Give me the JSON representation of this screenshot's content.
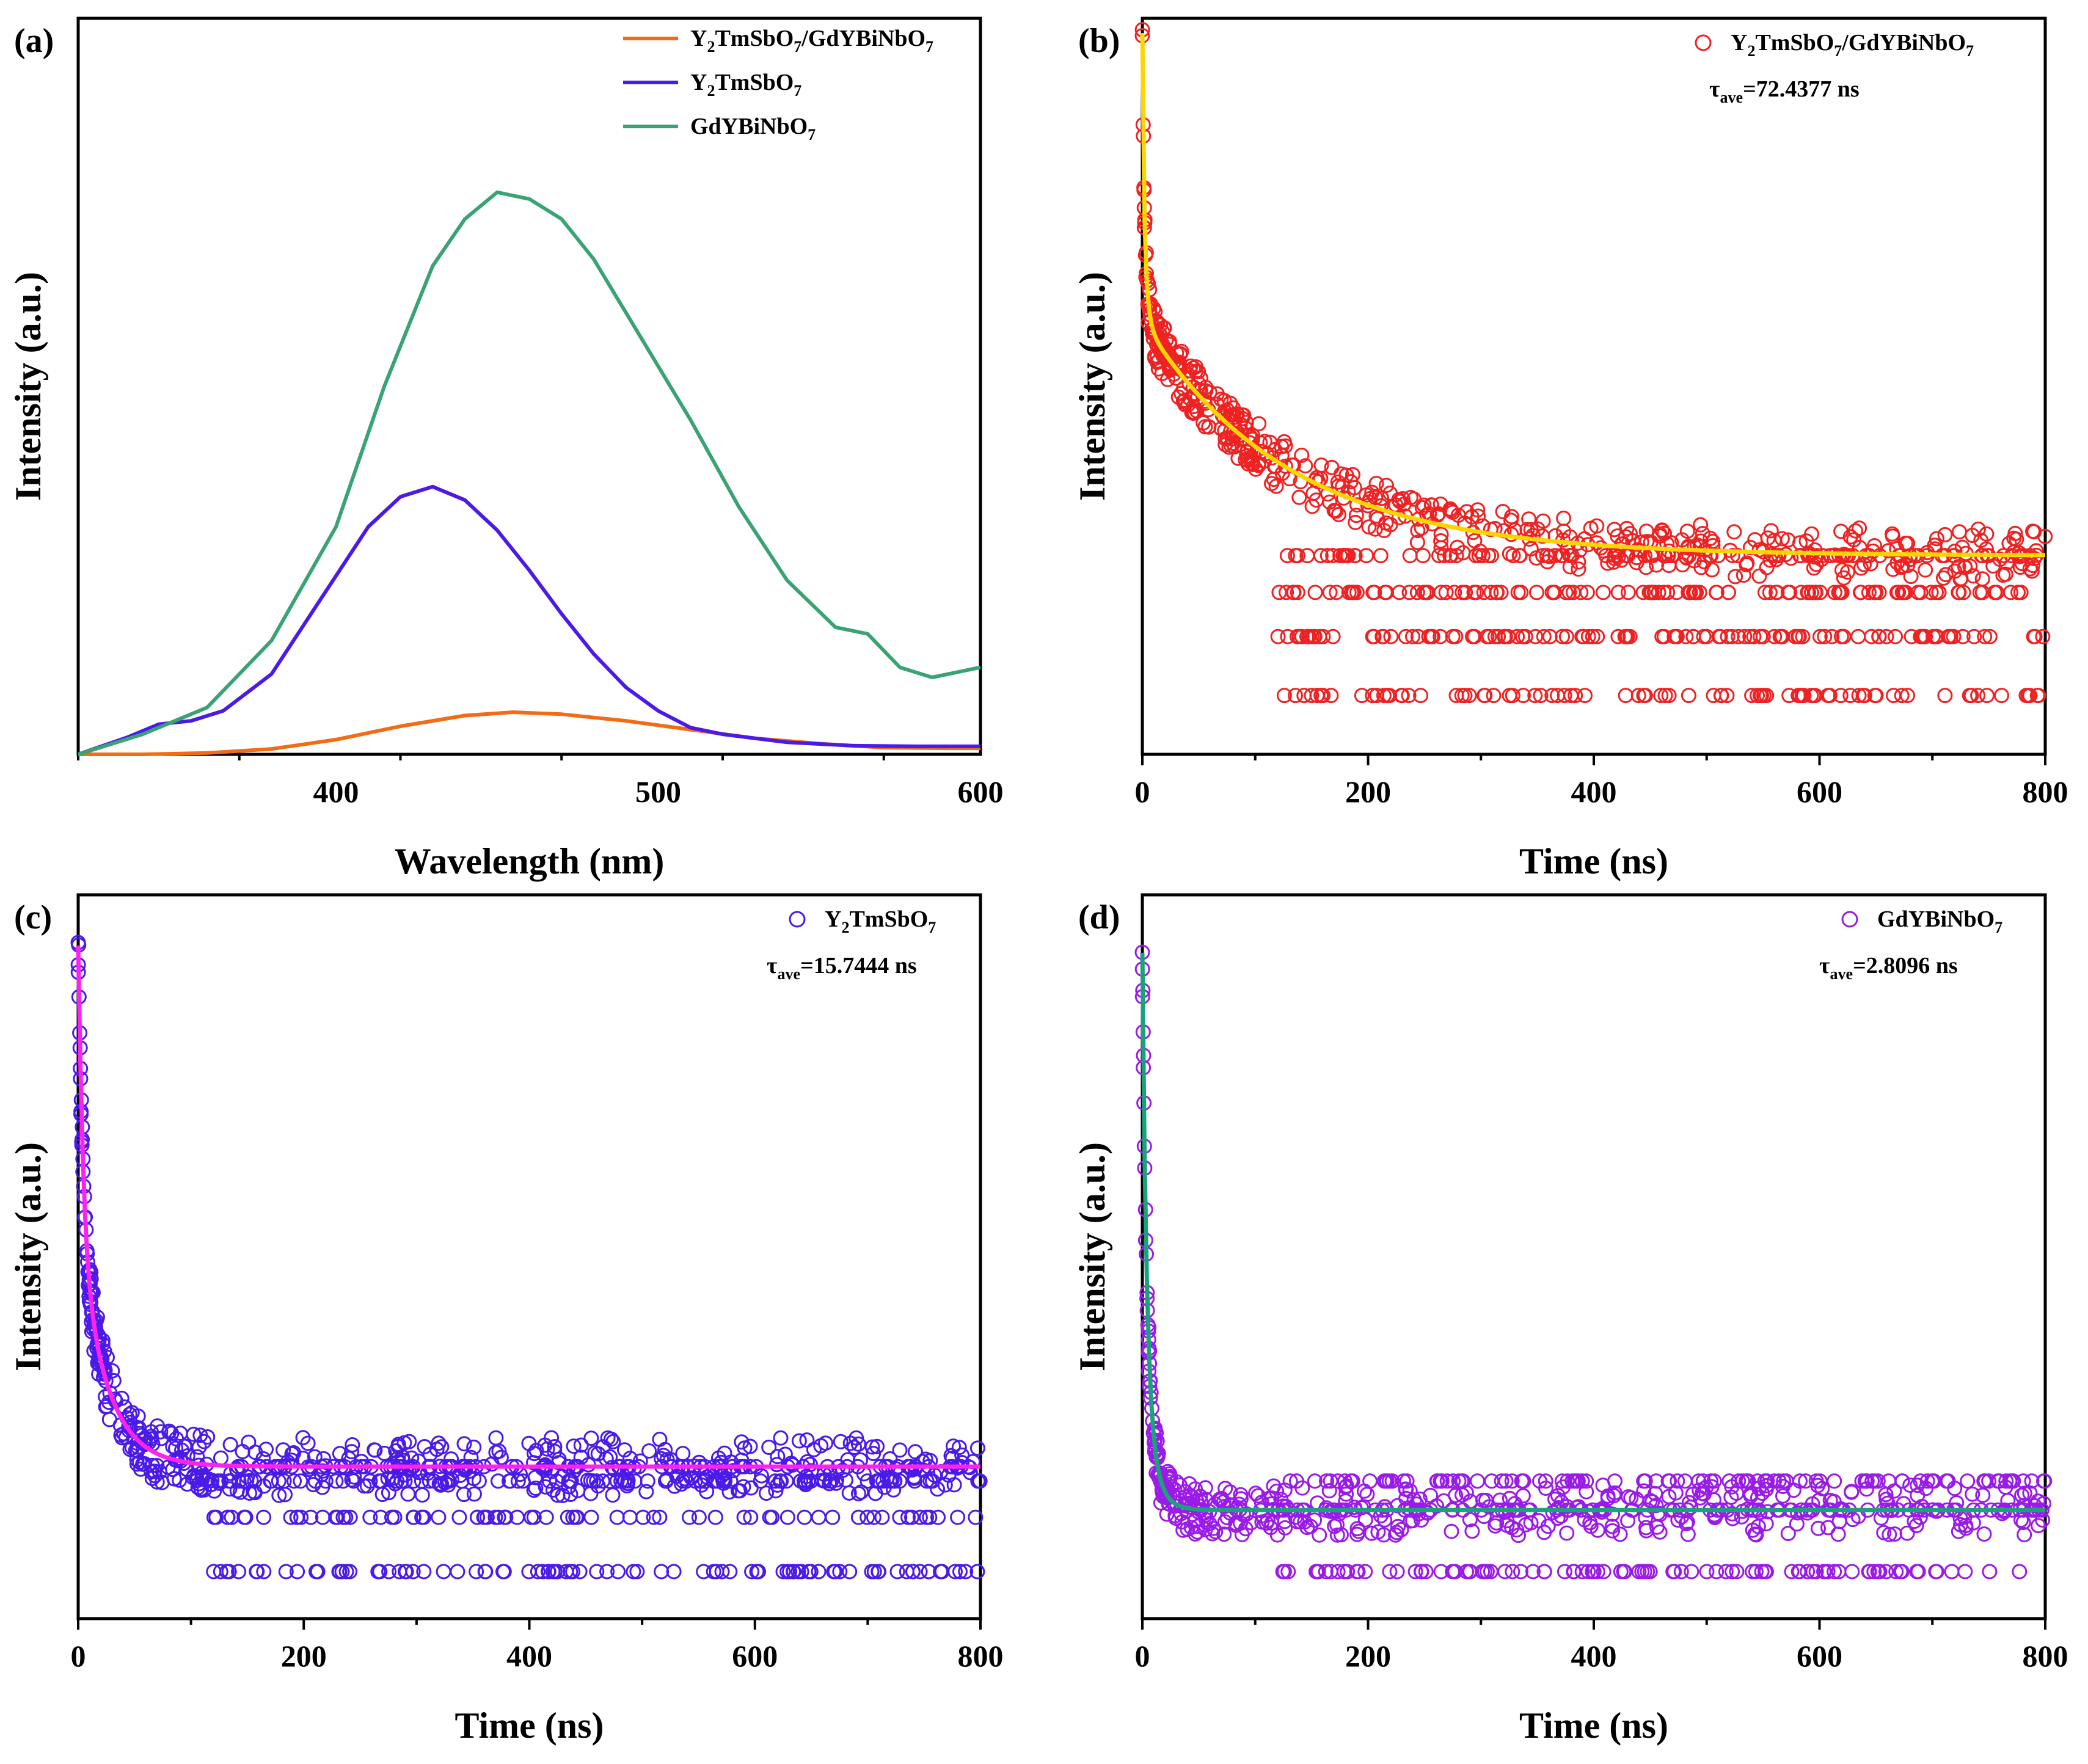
{
  "chart_data": [
    {
      "id": "a",
      "panel_label": "(a)",
      "type": "line",
      "xlabel": "Wavelength (nm)",
      "ylabel": "Intensity (a.u.)",
      "xlim": [
        320,
        600
      ],
      "ylim": [
        0,
        1.1
      ],
      "xticks": [
        400,
        500,
        600
      ],
      "legend_position": "top-right",
      "series": [
        {
          "name": "Y2TmSbO7/GdYBiNbO7",
          "legend": {
            "base": "Y",
            "s1": "2",
            "mid": "TmSbO",
            "s2": "7",
            "tail": "/GdYBiNbO",
            "s3": "7"
          },
          "color": "#f36b14",
          "x": [
            320,
            340,
            360,
            380,
            400,
            420,
            440,
            455,
            470,
            490,
            510,
            530,
            550,
            570,
            590,
            600
          ],
          "y": [
            0.0,
            0.0,
            0.002,
            0.008,
            0.022,
            0.042,
            0.058,
            0.063,
            0.06,
            0.05,
            0.037,
            0.024,
            0.016,
            0.01,
            0.009,
            0.009
          ]
        },
        {
          "name": "Y2TmSbO7",
          "legend": {
            "base": "Y",
            "s1": "2",
            "mid": "TmSbO",
            "s2": "7",
            "tail": "",
            "s3": ""
          },
          "color": "#4a1ae8",
          "x": [
            320,
            335,
            345,
            355,
            365,
            380,
            395,
            410,
            420,
            430,
            440,
            450,
            460,
            470,
            480,
            490,
            500,
            510,
            520,
            540,
            560,
            580,
            600
          ],
          "y": [
            0.0,
            0.025,
            0.045,
            0.05,
            0.065,
            0.12,
            0.23,
            0.34,
            0.385,
            0.4,
            0.38,
            0.335,
            0.275,
            0.21,
            0.15,
            0.1,
            0.065,
            0.04,
            0.03,
            0.018,
            0.013,
            0.012,
            0.012
          ]
        },
        {
          "name": "GdYBiNbO7",
          "legend": {
            "base": "GdYBiNbO",
            "s1": "7",
            "mid": "",
            "s2": "",
            "tail": "",
            "s3": ""
          },
          "color": "#3aa374",
          "x": [
            320,
            340,
            360,
            380,
            400,
            415,
            430,
            440,
            450,
            460,
            470,
            480,
            495,
            510,
            525,
            540,
            555,
            565,
            575,
            585,
            595,
            600
          ],
          "y": [
            0.0,
            0.03,
            0.07,
            0.17,
            0.34,
            0.55,
            0.73,
            0.8,
            0.84,
            0.83,
            0.8,
            0.74,
            0.62,
            0.5,
            0.37,
            0.26,
            0.19,
            0.18,
            0.13,
            0.115,
            0.125,
            0.13
          ]
        }
      ]
    },
    {
      "id": "b",
      "panel_label": "(b)",
      "type": "scatter",
      "xlabel": "Time (ns)",
      "ylabel": "Intensity (a.u.)",
      "xlim": [
        0,
        800
      ],
      "ylim": [
        0,
        1
      ],
      "xticks": [
        0,
        200,
        400,
        600,
        800
      ],
      "legend_position": "top-right",
      "marker_color": "#ee2222",
      "fit_color": "#ffd400",
      "legend": {
        "base": "Y",
        "s1": "2",
        "mid": "TmSbO",
        "s2": "7",
        "tail": "/GdYBiNbO",
        "s3": "7"
      },
      "tau_label": {
        "symbol": "τ",
        "sub": "ave",
        "value": "=72.4377 ns"
      },
      "decay": {
        "A1": 0.2,
        "t1": 3,
        "A2": 0.32,
        "t2": 130,
        "base": 0.27,
        "start": 0.98
      },
      "floor_levels": [
        0.27,
        0.22,
        0.16,
        0.08
      ],
      "scatter_n": 900,
      "noise": 0.035
    },
    {
      "id": "c",
      "panel_label": "(c)",
      "type": "scatter",
      "xlabel": "Time (ns)",
      "ylabel": "Intensity (a.u.)",
      "xlim": [
        0,
        800
      ],
      "ylim": [
        0,
        1
      ],
      "xticks": [
        0,
        200,
        400,
        600,
        800
      ],
      "legend_position": "top-right",
      "marker_color": "#4a1ae8",
      "fit_color": "#ff22ee",
      "legend": {
        "base": "Y",
        "s1": "2",
        "mid": "TmSbO",
        "s2": "7",
        "tail": "",
        "s3": ""
      },
      "tau_label": {
        "symbol": "τ",
        "sub": "ave",
        "value": "=15.7444 ns"
      },
      "decay": {
        "A1": 0.42,
        "t1": 4,
        "A2": 0.33,
        "t2": 24,
        "base": 0.21,
        "start": 0.93
      },
      "floor_levels": [
        0.21,
        0.19,
        0.14,
        0.065
      ],
      "scatter_n": 800,
      "noise": 0.04
    },
    {
      "id": "d",
      "panel_label": "(d)",
      "type": "scatter",
      "xlabel": "Time (ns)",
      "ylabel": "Intensity (a.u.)",
      "xlim": [
        0,
        800
      ],
      "ylim": [
        0,
        1
      ],
      "xticks": [
        0,
        200,
        400,
        600,
        800
      ],
      "legend_position": "top-right",
      "marker_color": "#9a1ae8",
      "fit_color": "#1aa37a",
      "legend": {
        "base": "GdYBiNbO",
        "s1": "7",
        "mid": "",
        "s2": "",
        "tail": "",
        "s3": ""
      },
      "tau_label": {
        "symbol": "τ",
        "sub": "ave",
        "value": "=2.8096 ns"
      },
      "decay": {
        "A1": 0.55,
        "t1": 3.5,
        "A2": 0.22,
        "t2": 9,
        "base": 0.15,
        "start": 0.92
      },
      "floor_levels": [
        0.19,
        0.15,
        0.065
      ],
      "scatter_n": 700,
      "noise": 0.035
    }
  ]
}
